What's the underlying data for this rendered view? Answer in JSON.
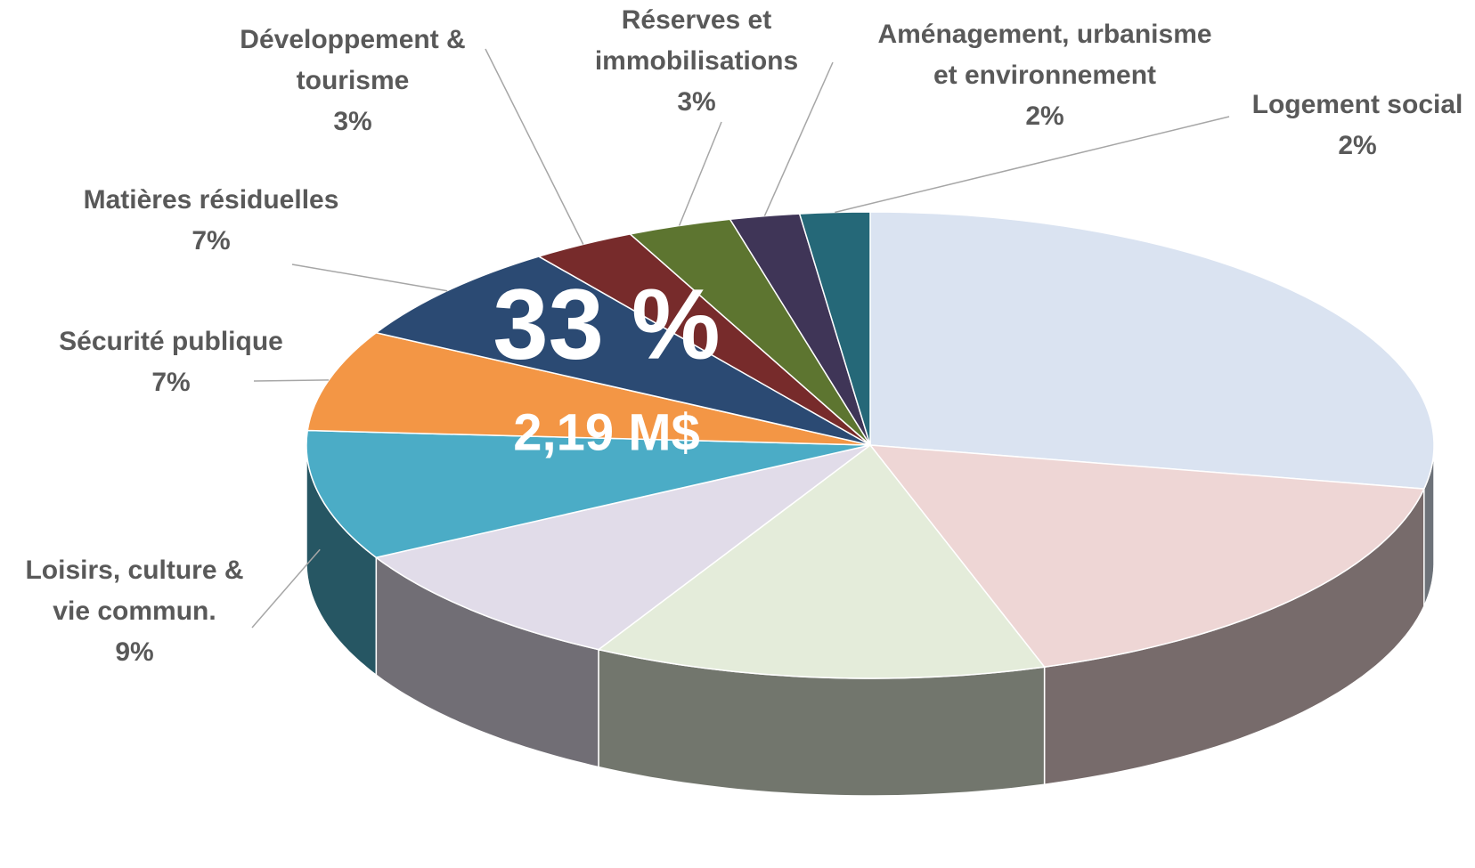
{
  "chart_data": {
    "type": "pie3d",
    "annotation": "33 %",
    "subannotation": "2,19 M$",
    "categories": [
      null,
      null,
      null,
      null,
      "Loisirs, culture &\nvie commun.",
      "Sécurité publique",
      "Matières résiduelles",
      "Développement &\ntourisme",
      "Réserves et\nimmobilisations",
      "Aménagement, urbanisme\net environnement",
      "Logement social"
    ],
    "values": [
      28,
      17,
      13,
      9,
      9,
      7,
      7,
      3,
      3,
      2,
      2
    ],
    "value_labels": [
      null,
      null,
      null,
      null,
      "9%",
      "7%",
      "7%",
      "3%",
      "3%",
      "2%",
      "2%"
    ],
    "colors": [
      "#dae3f1",
      "#eed6d5",
      "#e4ecda",
      "#e1dce9",
      "#4bacc6",
      "#f39645",
      "#2b4a73",
      "#772b2b",
      "#5d7530",
      "#3f3557",
      "#256878"
    ]
  }
}
